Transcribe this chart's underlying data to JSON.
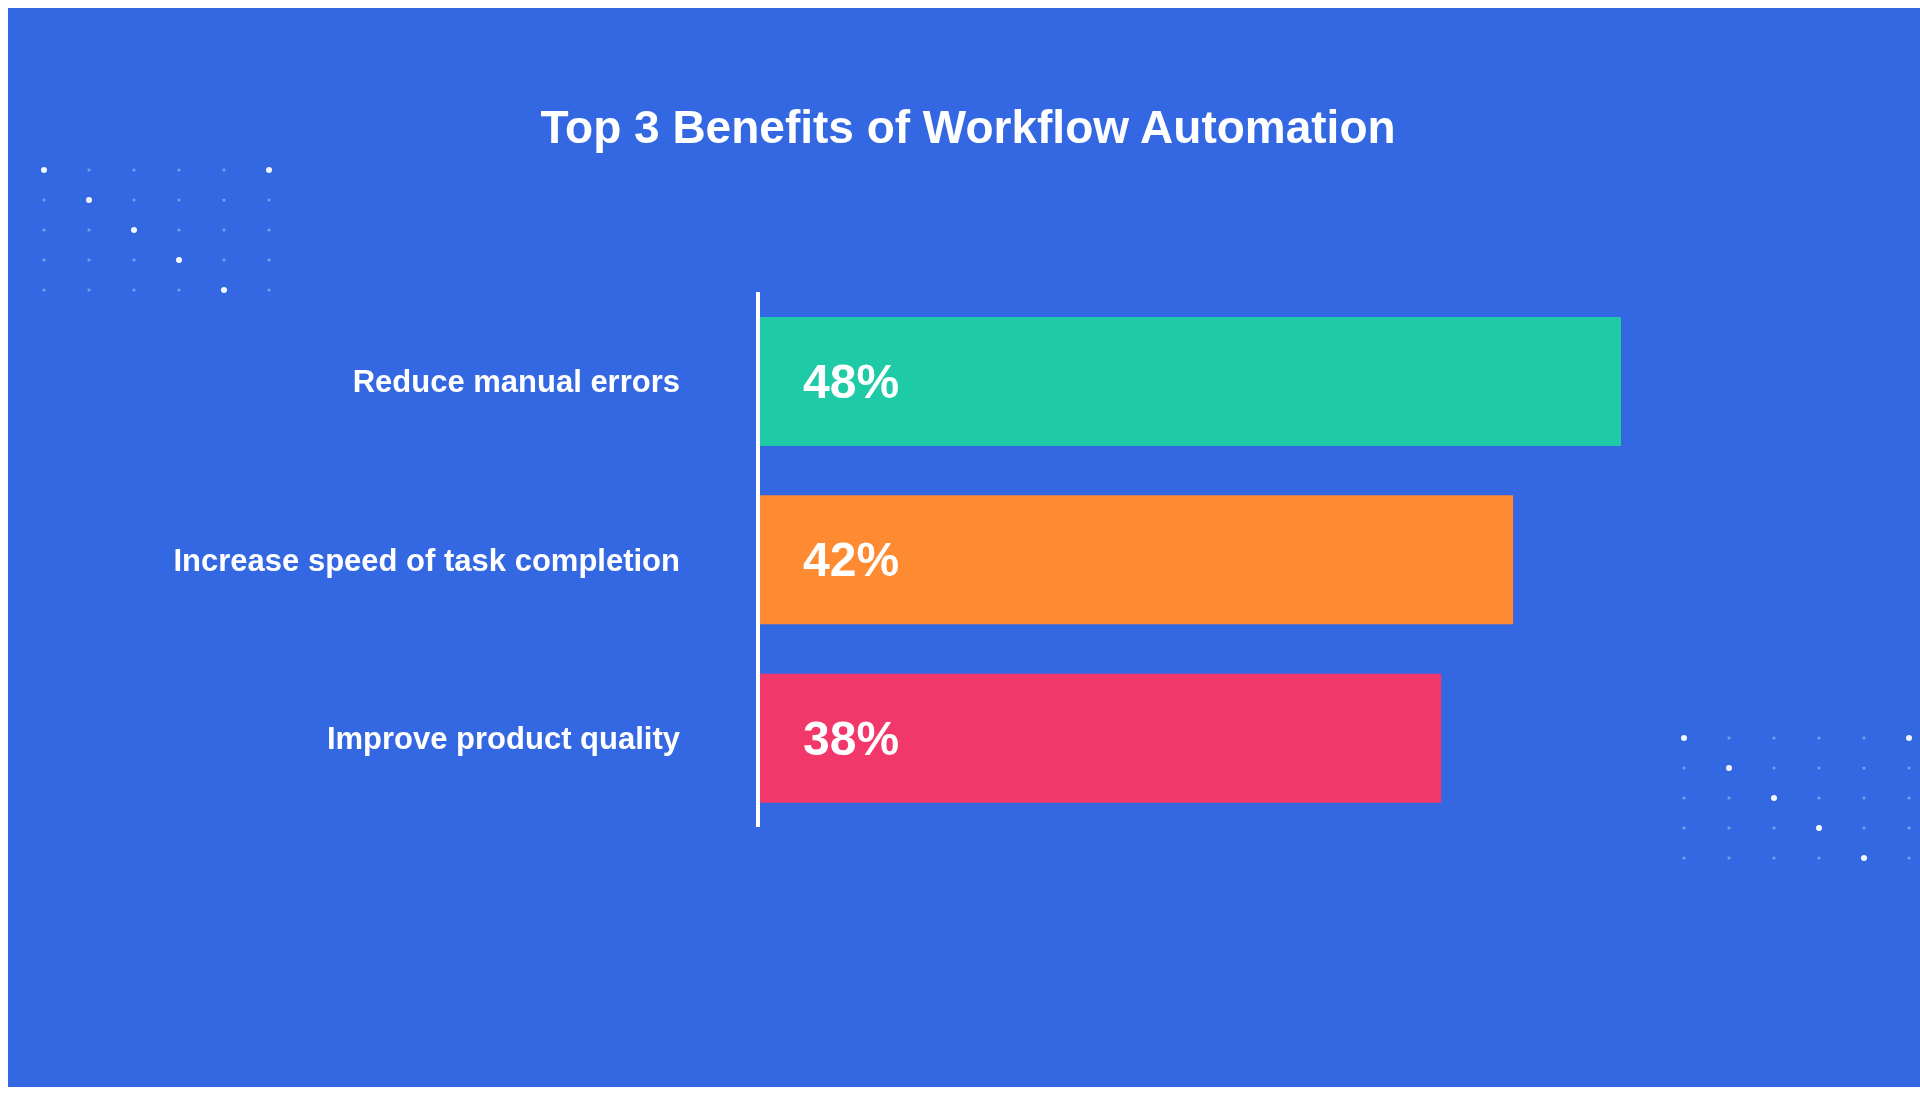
{
  "chart_data": {
    "type": "bar",
    "orientation": "horizontal",
    "title": "Top 3 Benefits of Workflow Automation",
    "categories": [
      "Reduce manual errors",
      "Increase speed of task completion",
      "Improve product quality"
    ],
    "values": [
      48,
      42,
      38
    ],
    "colors": [
      "#1ecba6",
      "#fe8a31",
      "#f2386b"
    ],
    "value_labels": [
      "48%",
      "42%",
      "38%"
    ]
  }
}
